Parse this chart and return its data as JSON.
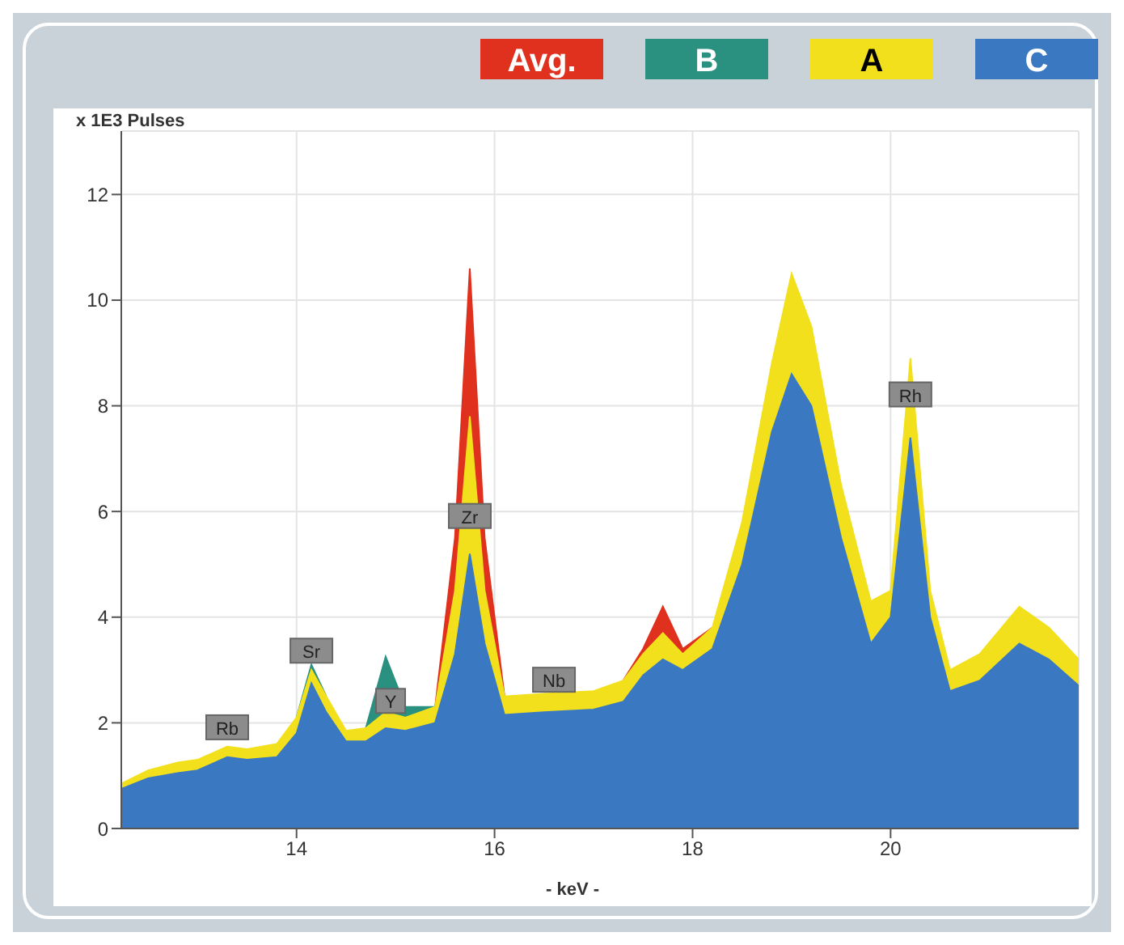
{
  "chart_data": {
    "type": "area",
    "xlabel": "- keV -",
    "ylabel": "x 1E3 Pulses",
    "x": [
      12.23,
      12.5,
      12.8,
      13.0,
      13.3,
      13.5,
      13.8,
      14.0,
      14.15,
      14.3,
      14.5,
      14.7,
      14.9,
      15.1,
      15.4,
      15.6,
      15.75,
      15.9,
      16.1,
      16.5,
      17.0,
      17.3,
      17.5,
      17.7,
      17.9,
      18.2,
      18.5,
      18.8,
      19.0,
      19.2,
      19.5,
      19.8,
      20.0,
      20.2,
      20.4,
      20.6,
      20.9,
      21.3,
      21.6,
      21.9
    ],
    "series": [
      {
        "name": "Avg.",
        "color": "#e0301e",
        "values": [
          null,
          null,
          null,
          null,
          null,
          null,
          null,
          null,
          null,
          null,
          null,
          null,
          null,
          null,
          2.3,
          5.5,
          10.6,
          5.5,
          2.5,
          null,
          null,
          2.8,
          3.4,
          4.2,
          3.4,
          3.8,
          null,
          null,
          null,
          null,
          null,
          null,
          null,
          null,
          null,
          null,
          null,
          null,
          null,
          null
        ]
      },
      {
        "name": "B",
        "color": "#2a9080",
        "values": [
          null,
          null,
          null,
          null,
          null,
          null,
          null,
          2.1,
          3.1,
          2.5,
          null,
          1.9,
          3.25,
          2.3,
          2.3,
          null,
          null,
          null,
          null,
          null,
          null,
          null,
          null,
          null,
          null,
          null,
          null,
          null,
          null,
          null,
          null,
          null,
          null,
          null,
          null,
          null,
          null,
          null,
          null,
          null
        ]
      },
      {
        "name": "A",
        "color": "#f2e01c",
        "values": [
          0.85,
          1.1,
          1.25,
          1.3,
          1.55,
          1.5,
          1.6,
          2.1,
          3.0,
          2.5,
          1.85,
          1.9,
          2.2,
          2.1,
          2.3,
          4.5,
          7.8,
          4.5,
          2.5,
          2.55,
          2.6,
          2.8,
          3.3,
          3.7,
          3.3,
          3.8,
          5.8,
          8.8,
          10.5,
          9.5,
          6.5,
          4.3,
          4.5,
          8.9,
          4.5,
          3.0,
          3.3,
          4.2,
          3.8,
          3.2
        ]
      },
      {
        "name": "C",
        "color": "#3b78c2",
        "values": [
          0.75,
          0.95,
          1.05,
          1.1,
          1.35,
          1.3,
          1.35,
          1.8,
          2.75,
          2.2,
          1.65,
          1.65,
          1.9,
          1.85,
          2.0,
          3.3,
          5.2,
          3.5,
          2.15,
          2.2,
          2.25,
          2.4,
          2.9,
          3.2,
          3.0,
          3.4,
          5.0,
          7.5,
          8.6,
          8.0,
          5.5,
          3.5,
          4.0,
          7.4,
          4.0,
          2.6,
          2.8,
          3.5,
          3.2,
          2.7
        ]
      }
    ],
    "xlim": [
      12.23,
      21.9
    ],
    "ylim": [
      0,
      13.2
    ],
    "xticks": [
      14,
      16,
      18,
      20
    ],
    "yticks": [
      0,
      2,
      4,
      6,
      8,
      10,
      12
    ],
    "grid": true,
    "legend": "top right",
    "annotations": [
      {
        "text": "Rb",
        "x": 13.3,
        "y": 1.9
      },
      {
        "text": "Sr",
        "x": 14.15,
        "y": 3.35
      },
      {
        "text": "Y",
        "x": 14.95,
        "y": 2.4
      },
      {
        "text": "Zr",
        "x": 15.75,
        "y": 5.9
      },
      {
        "text": "Nb",
        "x": 16.6,
        "y": 2.8
      },
      {
        "text": "Rh",
        "x": 20.2,
        "y": 8.2
      }
    ]
  }
}
